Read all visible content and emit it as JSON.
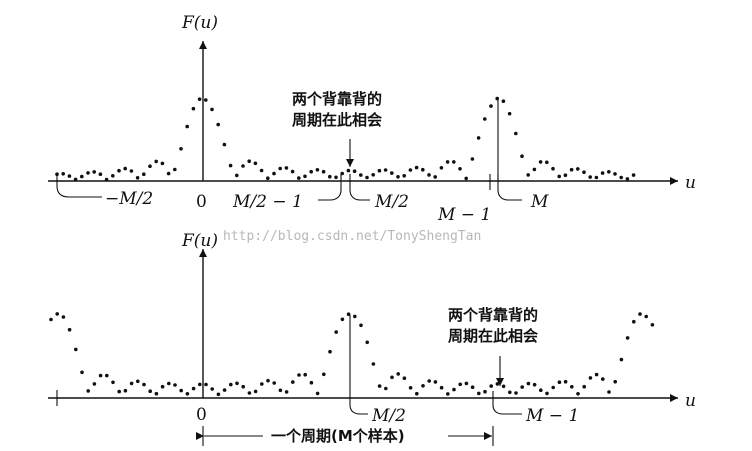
{
  "top": {
    "y_axis_label": "F(u)",
    "x_axis_label": "u",
    "ticks": {
      "neg_m_half": "−M/2",
      "zero": "0",
      "m_half_minus_1": "M/2 − 1",
      "m_half": "M/2",
      "m_minus_1": "M − 1",
      "m": "M"
    },
    "note_line1": "两个背靠背的",
    "note_line2": "周期在此相会"
  },
  "bottom": {
    "y_axis_label": "F(u)",
    "x_axis_label": "u",
    "ticks": {
      "zero": "0",
      "m_half": "M/2",
      "m_minus_1": "M − 1"
    },
    "note_line1": "两个背靠背的",
    "note_line2": "周期在此相会",
    "period_label": "一个周期(M个样本)"
  },
  "watermark": "http://blog.csdn.net/TonyShengTan"
}
